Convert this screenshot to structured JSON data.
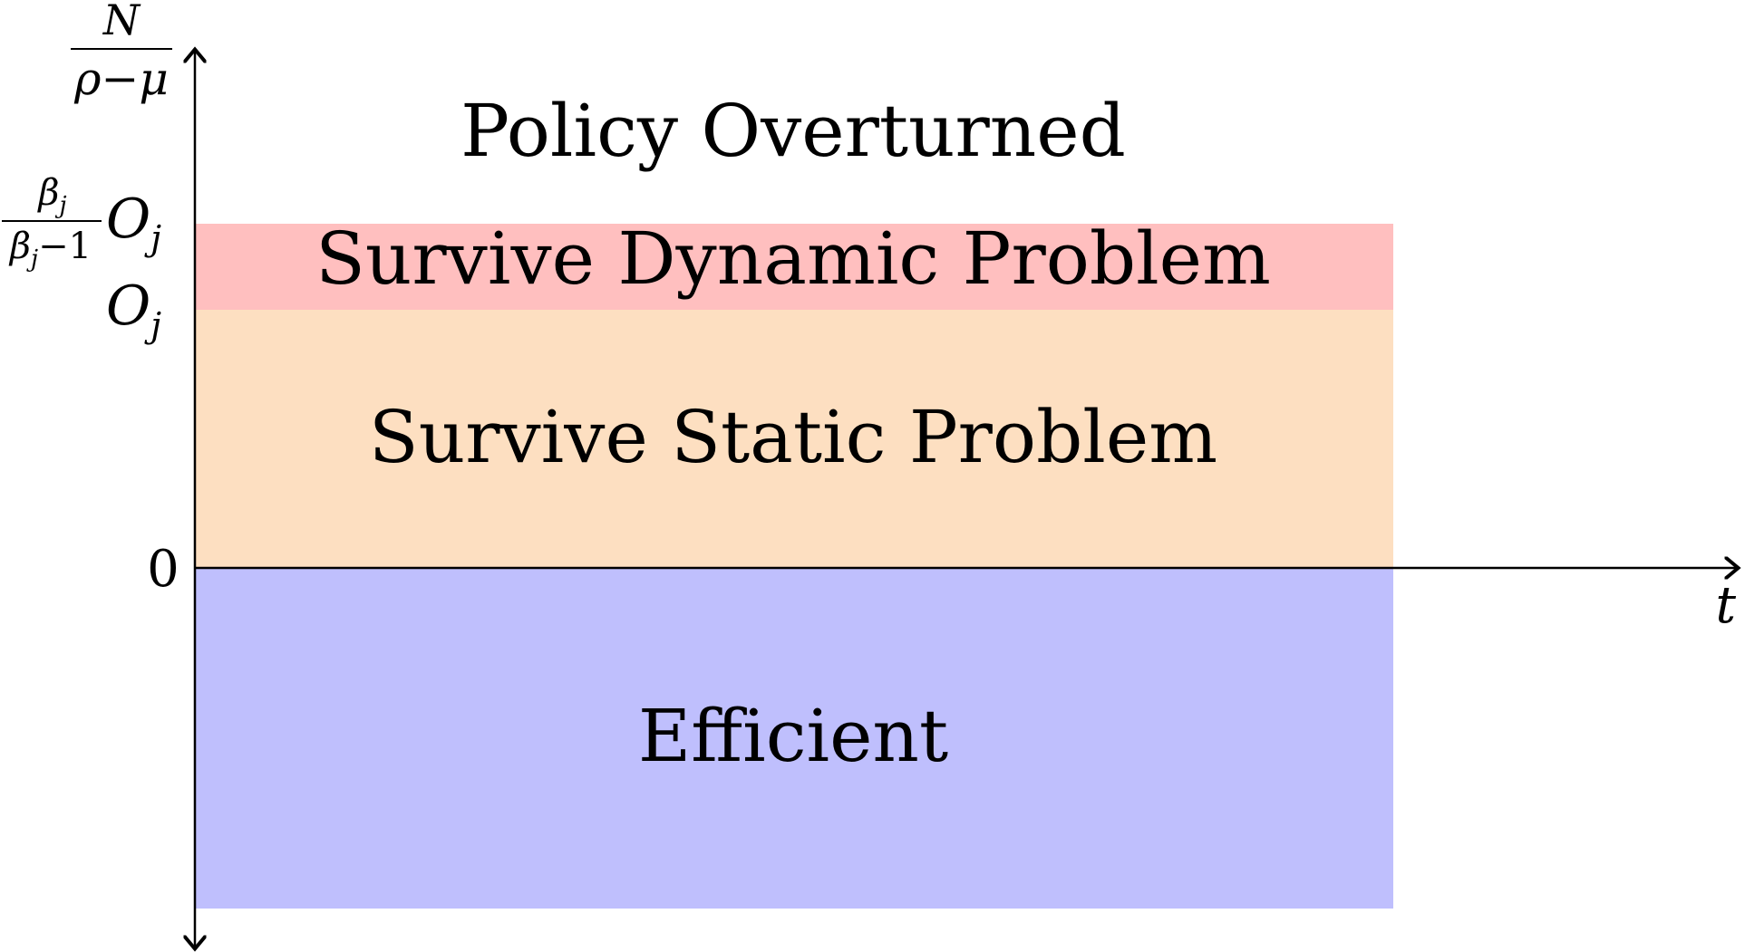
{
  "regions": [
    {
      "id": "policy-overturned",
      "label": "Policy Overturned",
      "color": "#ffffff"
    },
    {
      "id": "survive-dynamic",
      "label": "Survive Dynamic Problem",
      "color": "#ffbfbf"
    },
    {
      "id": "survive-static",
      "label": "Survive Static Problem",
      "color": "#fddfc1"
    },
    {
      "id": "efficient",
      "label": "Efficient",
      "color": "#bfbffd"
    }
  ],
  "axes": {
    "x_label": "t",
    "y_top_num": "N",
    "y_top_den": "ρ−μ",
    "tick_zero": "0",
    "tick_O": "O",
    "tick_O_sub": "j",
    "tick_frac_num": "β",
    "tick_frac_num_sub": "j",
    "tick_frac_den": "β",
    "tick_frac_den_sub": "j",
    "tick_frac_den_tail": "−1"
  }
}
